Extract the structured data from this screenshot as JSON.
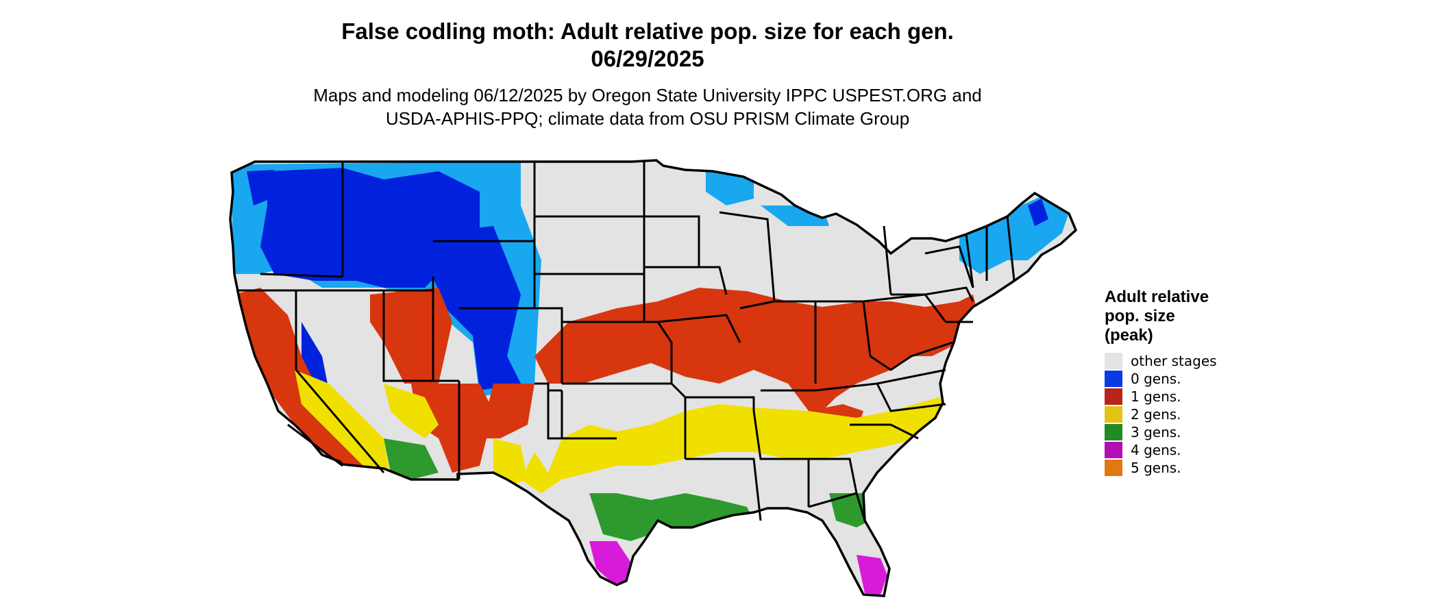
{
  "title": {
    "line1": "False codling moth: Adult relative pop. size for each gen.",
    "line2": "06/29/2025"
  },
  "subtitle": {
    "line1": "Maps and modeling 06/12/2025 by Oregon State University IPPC USPEST.ORG and",
    "line2": "USDA-APHIS-PPQ; climate data from OSU PRISM Climate Group"
  },
  "legend": {
    "title": "Adult relative\npop. size\n(peak)",
    "items": [
      {
        "label": "other stages",
        "color": "#e3e3e3",
        "name": "legend-item-other-stages"
      },
      {
        "label": "0 gens.",
        "color": "#0a3ae6",
        "name": "legend-item-0-gens"
      },
      {
        "label": "1 gens.",
        "color": "#b8261a",
        "name": "legend-item-1-gens"
      },
      {
        "label": "2 gens.",
        "color": "#e3c414",
        "name": "legend-item-2-gens"
      },
      {
        "label": "3 gens.",
        "color": "#238b26",
        "name": "legend-item-3-gens"
      },
      {
        "label": "4 gens.",
        "color": "#b20fb5",
        "name": "legend-item-4-gens"
      },
      {
        "label": "5 gens.",
        "color": "#e07a10",
        "name": "legend-item-5-gens"
      }
    ]
  },
  "map_colors": {
    "background_land": "#e3e3e3",
    "gen0_dark": "#0022dd",
    "gen0_light": "#19a7f0",
    "gen1": "#d8360f",
    "gen1_dark": "#b8261a",
    "gen2": "#f0e000",
    "gen3": "#2e9a2e",
    "gen4": "#d81bd8",
    "gen5": "#e07a10",
    "border": "#000000"
  }
}
